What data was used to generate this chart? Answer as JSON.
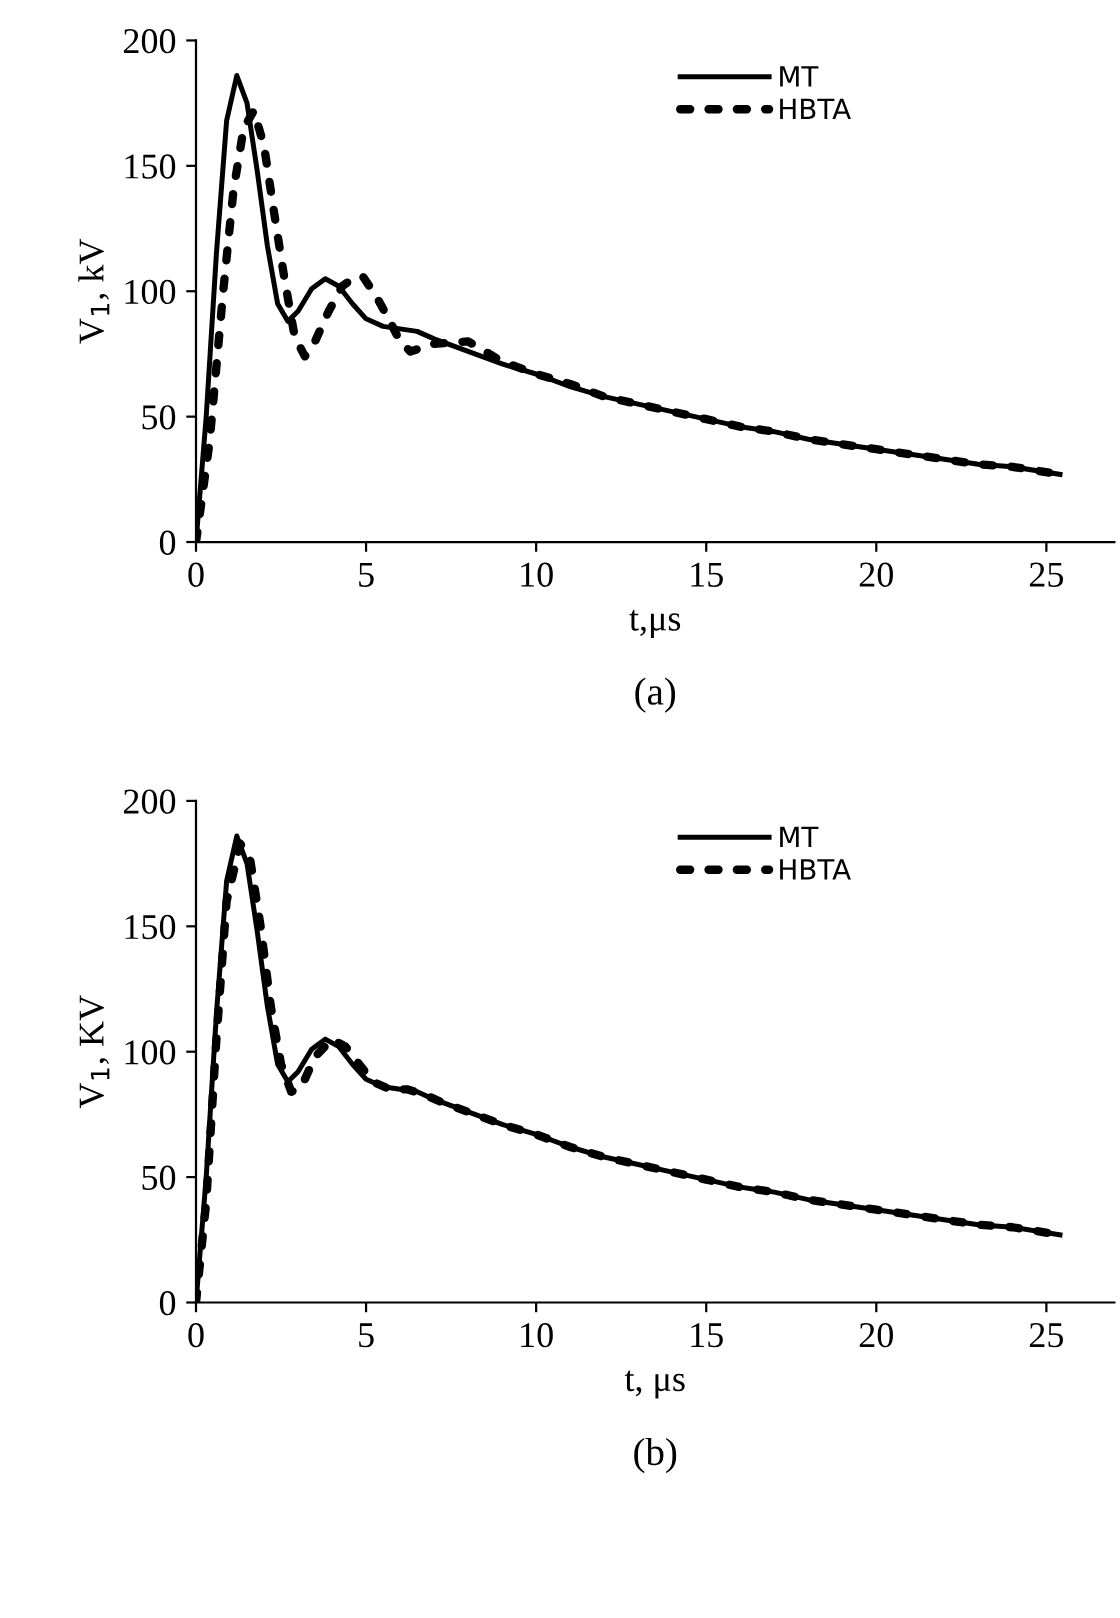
{
  "chart_data": [
    {
      "type": "line",
      "xlabel": "t,μs",
      "ylabel": "V$_{1}$, kV",
      "xlim": [
        0,
        27
      ],
      "ylim": [
        0,
        200
      ],
      "xticks": [
        0,
        5,
        10,
        15,
        20,
        25
      ],
      "yticks": [
        0,
        50,
        100,
        150,
        200
      ],
      "legend": "top right",
      "grid": false,
      "annotations": [
        "(a)"
      ],
      "series": [
        {
          "name": "MT",
          "color": "#000000",
          "line_style": "solid",
          "x": [
            0,
            0.3,
            0.6,
            0.9,
            1.2,
            1.5,
            1.8,
            2.1,
            2.4,
            2.7,
            3.0,
            3.4,
            3.8,
            4.2,
            4.6,
            5.0,
            5.5,
            6.0,
            6.5,
            7.0,
            8.0,
            9.0,
            10,
            11,
            12,
            13,
            14,
            15,
            16,
            17,
            18,
            19,
            20,
            21,
            22,
            23,
            24,
            25.4
          ],
          "values": [
            0,
            50,
            115,
            168,
            186,
            175,
            148,
            118,
            95,
            88,
            92,
            101,
            105,
            102,
            95,
            89,
            86,
            85,
            84,
            81,
            76,
            71,
            67,
            62,
            58,
            55,
            52,
            49,
            46,
            44,
            41,
            39,
            37,
            35,
            33,
            31,
            30,
            27
          ]
        },
        {
          "name": "HBTA",
          "color": "#000000",
          "line_style": "dotted",
          "x": [
            0,
            0.4,
            0.8,
            1.1,
            1.4,
            1.7,
            2.0,
            2.3,
            2.6,
            2.9,
            3.2,
            3.5,
            3.9,
            4.3,
            4.6,
            4.9,
            5.3,
            5.7,
            6.0,
            6.3,
            7.0,
            8.0,
            8.5,
            9.0,
            10,
            11,
            12,
            13,
            14,
            15,
            16,
            17,
            18,
            19,
            20,
            21,
            22,
            23,
            24,
            25.4
          ],
          "values": [
            0,
            40,
            100,
            140,
            165,
            172,
            158,
            131,
            105,
            82,
            74,
            80,
            92,
            102,
            105,
            106,
            98,
            88,
            80,
            76,
            79,
            80,
            76,
            72,
            67,
            63,
            58,
            55,
            52,
            49,
            46,
            44,
            41,
            39,
            37,
            35,
            33,
            31,
            30,
            27
          ]
        }
      ]
    },
    {
      "type": "line",
      "xlabel": "t, μs",
      "ylabel": "V$_{1}$, KV",
      "xlim": [
        0,
        27
      ],
      "ylim": [
        0,
        200
      ],
      "xticks": [
        0,
        5,
        10,
        15,
        20,
        25
      ],
      "yticks": [
        0,
        50,
        100,
        150,
        200
      ],
      "legend": "top right",
      "grid": false,
      "annotations": [
        "(b)"
      ],
      "series": [
        {
          "name": "MT",
          "color": "#000000",
          "line_style": "solid",
          "x": [
            0,
            0.3,
            0.6,
            0.9,
            1.2,
            1.5,
            1.8,
            2.1,
            2.4,
            2.7,
            3.0,
            3.4,
            3.8,
            4.2,
            4.6,
            5.0,
            5.5,
            6.0,
            6.5,
            7.0,
            8.0,
            9.0,
            10,
            11,
            12,
            13,
            14,
            15,
            16,
            17,
            18,
            19,
            20,
            21,
            22,
            23,
            24,
            25.4
          ],
          "values": [
            0,
            50,
            115,
            168,
            186,
            175,
            148,
            118,
            95,
            88,
            92,
            101,
            105,
            102,
            95,
            89,
            86,
            85,
            84,
            81,
            76,
            71,
            67,
            62,
            58,
            55,
            52,
            49,
            46,
            44,
            41,
            39,
            37,
            35,
            33,
            31,
            30,
            27
          ]
        },
        {
          "name": "HBTA",
          "color": "#000000",
          "line_style": "dotted",
          "x": [
            0,
            0.3,
            0.6,
            0.9,
            1.3,
            1.6,
            1.9,
            2.2,
            2.5,
            2.8,
            3.1,
            3.5,
            4.0,
            4.4,
            4.8,
            5.2,
            5.7,
            6.2,
            6.7,
            7.2,
            8.0,
            9.0,
            10,
            11,
            12,
            13,
            14,
            15,
            16,
            17,
            18,
            19,
            20,
            21,
            22,
            23,
            24,
            25.4
          ],
          "values": [
            0,
            40,
            105,
            160,
            183,
            176,
            150,
            118,
            95,
            84,
            86,
            98,
            105,
            102,
            95,
            88,
            85,
            85,
            83,
            80,
            76,
            71,
            67,
            62,
            58,
            55,
            52,
            49,
            46,
            44,
            41,
            39,
            37,
            35,
            33,
            31,
            30,
            27
          ]
        }
      ]
    }
  ]
}
